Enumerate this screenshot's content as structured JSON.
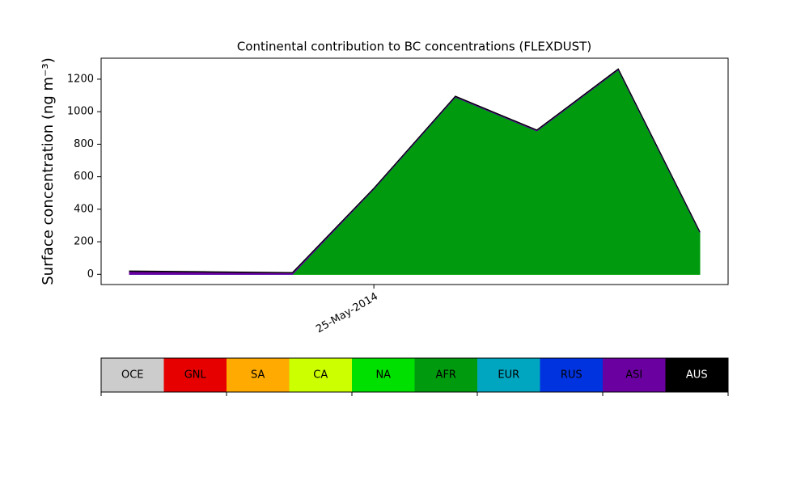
{
  "chart_data": {
    "type": "stacked_area",
    "title": "Continental contribution to BC concentrations (FLEXDUST)",
    "y_label": "Surface concentration (ng m⁻³)",
    "categories": [
      null,
      null,
      null,
      "25-May-2014",
      null,
      null,
      null,
      null
    ],
    "ylim": [
      -63,
      1329
    ],
    "yticks": [
      0,
      200,
      400,
      600,
      800,
      1000,
      1200
    ],
    "series": [
      {
        "name": "OCE",
        "color": "#cccccc",
        "values": [
          0,
          0,
          0,
          0,
          0,
          0,
          0,
          0
        ]
      },
      {
        "name": "GNL",
        "color": "#e60000",
        "values": [
          0,
          0,
          0,
          0,
          0,
          0,
          0,
          0
        ]
      },
      {
        "name": "SA",
        "color": "#ffaa00",
        "values": [
          0,
          0,
          0,
          0,
          0,
          0,
          0,
          0
        ]
      },
      {
        "name": "CA",
        "color": "#ccff00",
        "values": [
          0,
          0,
          0,
          0,
          0,
          0,
          0,
          0
        ]
      },
      {
        "name": "NA",
        "color": "#00e000",
        "values": [
          0,
          0,
          0,
          0,
          0,
          0,
          0,
          0
        ]
      },
      {
        "name": "AFR",
        "color": "#009a0e",
        "values": [
          0,
          0,
          0,
          525,
          1090,
          882,
          1258,
          258
        ]
      },
      {
        "name": "EUR",
        "color": "#00a5c0",
        "values": [
          0,
          0,
          0,
          0,
          0,
          0,
          0,
          0
        ]
      },
      {
        "name": "RUS",
        "color": "#0033e0",
        "values": [
          0,
          0,
          0,
          0,
          0,
          0,
          0,
          0
        ]
      },
      {
        "name": "ASI",
        "color": "#6a00a0",
        "values": [
          18,
          13,
          9,
          3,
          4,
          4,
          4,
          3
        ]
      },
      {
        "name": "AUS",
        "color": "#000000",
        "values": [
          3,
          3,
          2,
          2,
          2,
          2,
          2,
          2
        ]
      }
    ]
  }
}
